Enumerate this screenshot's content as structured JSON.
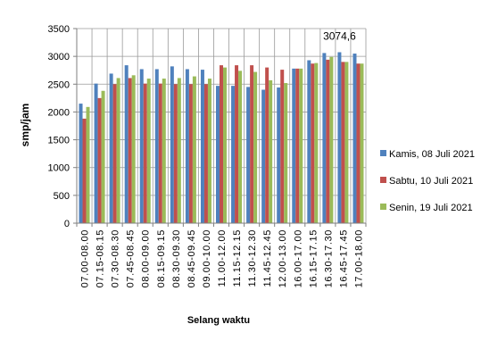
{
  "chart_data": {
    "type": "bar",
    "title": "",
    "xlabel": "Selang waktu",
    "ylabel": "smp/jam",
    "ylim": [
      0,
      3500
    ],
    "yticks": [
      0,
      500,
      1000,
      1500,
      2000,
      2500,
      3000,
      3500
    ],
    "grid": true,
    "legend_position": "right",
    "categories": [
      "07.00-08.00",
      "07.15-08.15",
      "07.30-08.30",
      "07.45-08.45",
      "08.00-09.00",
      "08.15-09.15",
      "08.30-09.30",
      "08.45-09.45",
      "09.00-10.00",
      "11.00-12.00",
      "11.15-12.15",
      "11.30-12.30",
      "11.45-12.45",
      "12.00-13.00",
      "16.00-17.00",
      "16.15-17.15",
      "16.30-17.30",
      "16.45-17.45",
      "17.00-18.00"
    ],
    "series": [
      {
        "name": "Kamis, 08 Juli 2021",
        "color": "#4f81bd",
        "values": [
          2150,
          2510,
          2690,
          2840,
          2770,
          2770,
          2820,
          2770,
          2760,
          2470,
          2470,
          2450,
          2400,
          2440,
          2780,
          2930,
          3060,
          3074.6,
          3050
        ]
      },
      {
        "name": "Sabtu, 10 Juli 2021",
        "color": "#c0504d",
        "values": [
          1880,
          2250,
          2500,
          2610,
          2510,
          2510,
          2500,
          2500,
          2500,
          2840,
          2840,
          2840,
          2800,
          2760,
          2780,
          2870,
          2940,
          2900,
          2870
        ]
      },
      {
        "name": "Senin, 19 Juli 2021",
        "color": "#9bbb59",
        "values": [
          2090,
          2380,
          2610,
          2660,
          2600,
          2600,
          2610,
          2640,
          2600,
          2800,
          2740,
          2720,
          2570,
          2520,
          2780,
          2880,
          2990,
          2900,
          2870
        ]
      }
    ],
    "annotations": [
      {
        "text": "3074,6",
        "series": 0,
        "category": "16.45-17.45",
        "value": 3074.6
      }
    ]
  }
}
